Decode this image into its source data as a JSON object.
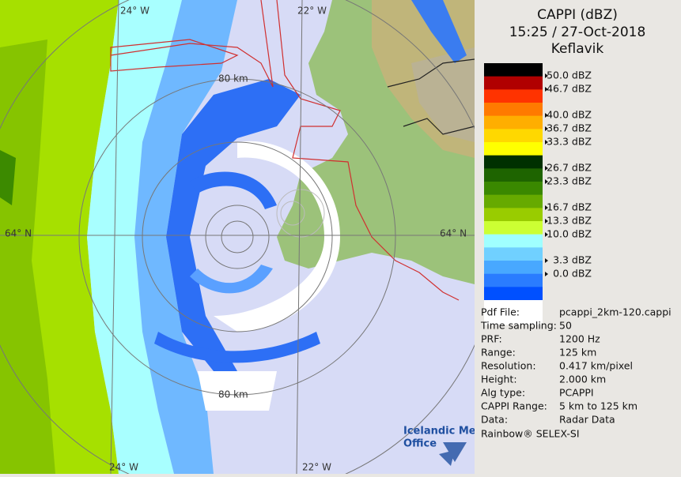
{
  "map": {
    "lon_labels_top": [
      "24° W",
      "22° W"
    ],
    "lon_labels_bottom": [
      "24° W",
      "22° W"
    ],
    "lat_labels": [
      "64° N",
      "64° N"
    ],
    "range_labels": [
      "80 km",
      "80 km"
    ]
  },
  "legend": {
    "title": "CAPPI (dBZ)",
    "time": "15:25 / 27-Oct-2018",
    "station": "Keflavik",
    "scale_labels": [
      "50.0 dBZ",
      "46.7 dBZ",
      "40.0 dBZ",
      "36.7 dBZ",
      "33.3 dBZ",
      "26.7 dBZ",
      "23.3 dBZ",
      "16.7 dBZ",
      "13.3 dBZ",
      "10.0 dBZ",
      "3.3 dBZ",
      "0.0 dBZ"
    ]
  },
  "info": {
    "rows": [
      [
        "Pdf File:",
        "pcappi_2km-120.cappi"
      ],
      [
        "Time sampling:",
        "50"
      ],
      [
        "PRF:",
        "1200 Hz"
      ],
      [
        "Range:",
        "125 km"
      ],
      [
        "Resolution:",
        "0.417 km/pixel"
      ],
      [
        "Height:",
        "2.000 km"
      ],
      [
        "Alg type:",
        "PCAPPI"
      ],
      [
        "CAPPI Range:",
        "5 km to 125 km"
      ],
      [
        "Data:",
        "Radar Data"
      ]
    ]
  },
  "footer": "Rainbow® SELEX-SI",
  "logo": [
    "Icelandic Met",
    "Office"
  ]
}
